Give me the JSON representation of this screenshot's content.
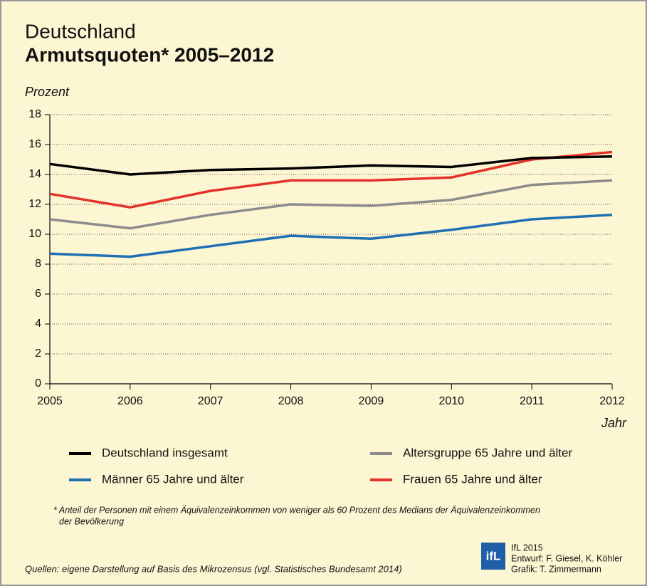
{
  "chart_data": {
    "type": "line",
    "title": "Deutschland",
    "subtitle": "Armutsquoten* 2005–2012",
    "y_label": "Prozent",
    "x_label": "Jahr",
    "x": [
      2005,
      2006,
      2007,
      2008,
      2009,
      2010,
      2011,
      2012
    ],
    "xlim": [
      2005,
      2012
    ],
    "xticks": [
      2005,
      2006,
      2007,
      2008,
      2009,
      2010,
      2011,
      2012
    ],
    "ylim": [
      0,
      18
    ],
    "yticks": [
      0,
      2,
      4,
      6,
      8,
      10,
      12,
      14,
      16,
      18
    ],
    "grid": true,
    "series": [
      {
        "name": "Deutschland insgesamt",
        "color": "#000000",
        "values": [
          14.7,
          14.0,
          14.3,
          14.4,
          14.6,
          14.5,
          15.1,
          15.2
        ]
      },
      {
        "name": "Altersgruppe 65 Jahre und älter",
        "color": "#8c8c8c",
        "values": [
          11.0,
          10.4,
          11.3,
          12.0,
          11.9,
          12.3,
          13.3,
          13.6
        ]
      },
      {
        "name": "Männer 65 Jahre und älter",
        "color": "#1f6fb3",
        "values": [
          8.7,
          8.5,
          9.2,
          9.9,
          9.7,
          10.3,
          11.0,
          11.3
        ]
      },
      {
        "name": "Frauen 65 Jahre und älter",
        "color": "#e2332a",
        "values": [
          12.7,
          11.8,
          12.9,
          13.6,
          13.6,
          13.8,
          15.0,
          15.5
        ]
      }
    ],
    "footnote": [
      "* Anteil der Personen mit einem Äquivalenzeinkommen von weniger als 60 Prozent des Medians der Äquivalenzeinkommen",
      "der Bevölkerung"
    ],
    "source": "Quellen: eigene Darstellung auf Basis des Mikrozensus (vgl. Statistisches Bundesamt 2014)",
    "logo": "ifL",
    "credits": [
      "IfL 2015",
      "Entwurf: F. Giesel, K. Köhler",
      "Grafik: T. Zimmermann"
    ]
  }
}
